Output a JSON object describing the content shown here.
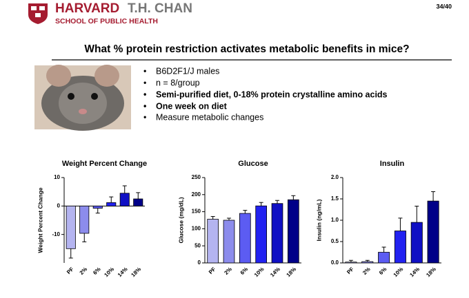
{
  "slide": {
    "logo_main": "HARVARD",
    "logo_sub": "T.H. CHAN",
    "logo_school": "SCHOOL OF PUBLIC HEALTH",
    "page": "34/40",
    "title": "What % protein restriction activates metabolic benefits in mice?",
    "bullets": [
      "B6D2F1/J males",
      "n = 8/group",
      "Semi-purified diet, 0-18% protein crystalline amino acids",
      "One week on diet",
      "Measure metabolic changes"
    ]
  },
  "chart_data": [
    {
      "type": "bar",
      "title": "Weight Percent Change",
      "ylabel": "Weight Percent Change",
      "categories": [
        "PF",
        "2%",
        "6%",
        "10%",
        "14%",
        "18%"
      ],
      "values": [
        -15,
        -9.6,
        -0.8,
        1.2,
        4.5,
        2.5
      ],
      "errors": [
        3.3,
        3,
        1.7,
        2,
        2.6,
        2.2
      ],
      "colors": [
        "#b4b4f0",
        "#8c8cec",
        "#5c5cf2",
        "#2222f0",
        "#1010c4",
        "#000088"
      ],
      "ylim": [
        -20,
        10
      ],
      "yticks": [
        -10,
        0,
        10
      ]
    },
    {
      "type": "bar",
      "title": "Glucose",
      "ylabel": "Glucose (mg/dL)",
      "categories": [
        "PF",
        "2%",
        "6%",
        "10%",
        "14%",
        "18%"
      ],
      "values": [
        128,
        125,
        145,
        167,
        174,
        185
      ],
      "errors": [
        8,
        6,
        9,
        10,
        9,
        12
      ],
      "colors": [
        "#b4b4f0",
        "#8c8cec",
        "#5c5cf2",
        "#2222f0",
        "#1010c4",
        "#000088"
      ],
      "ylim": [
        0,
        250
      ],
      "yticks": [
        0,
        50,
        100,
        150,
        200,
        250
      ]
    },
    {
      "type": "bar",
      "title": "Insulin",
      "ylabel": "Insulin (ng/mL)",
      "categories": [
        "PF",
        "2%",
        "6%",
        "10%",
        "14%",
        "18%"
      ],
      "values": [
        0.02,
        0.03,
        0.25,
        0.75,
        0.95,
        1.45
      ],
      "errors": [
        0.04,
        0.03,
        0.12,
        0.3,
        0.38,
        0.22
      ],
      "colors": [
        "#b4b4f0",
        "#8c8cec",
        "#5c5cf2",
        "#2222f0",
        "#1010c4",
        "#000088"
      ],
      "ylim": [
        0,
        2
      ],
      "yticks": [
        {
          "value": 0,
          "label": "0.0"
        },
        {
          "value": 0.5,
          "label": "0.5"
        },
        {
          "value": 1,
          "label": "1.0"
        },
        {
          "value": 1.5,
          "label": "1.5"
        },
        {
          "value": 2,
          "label": "2.0"
        }
      ]
    }
  ]
}
